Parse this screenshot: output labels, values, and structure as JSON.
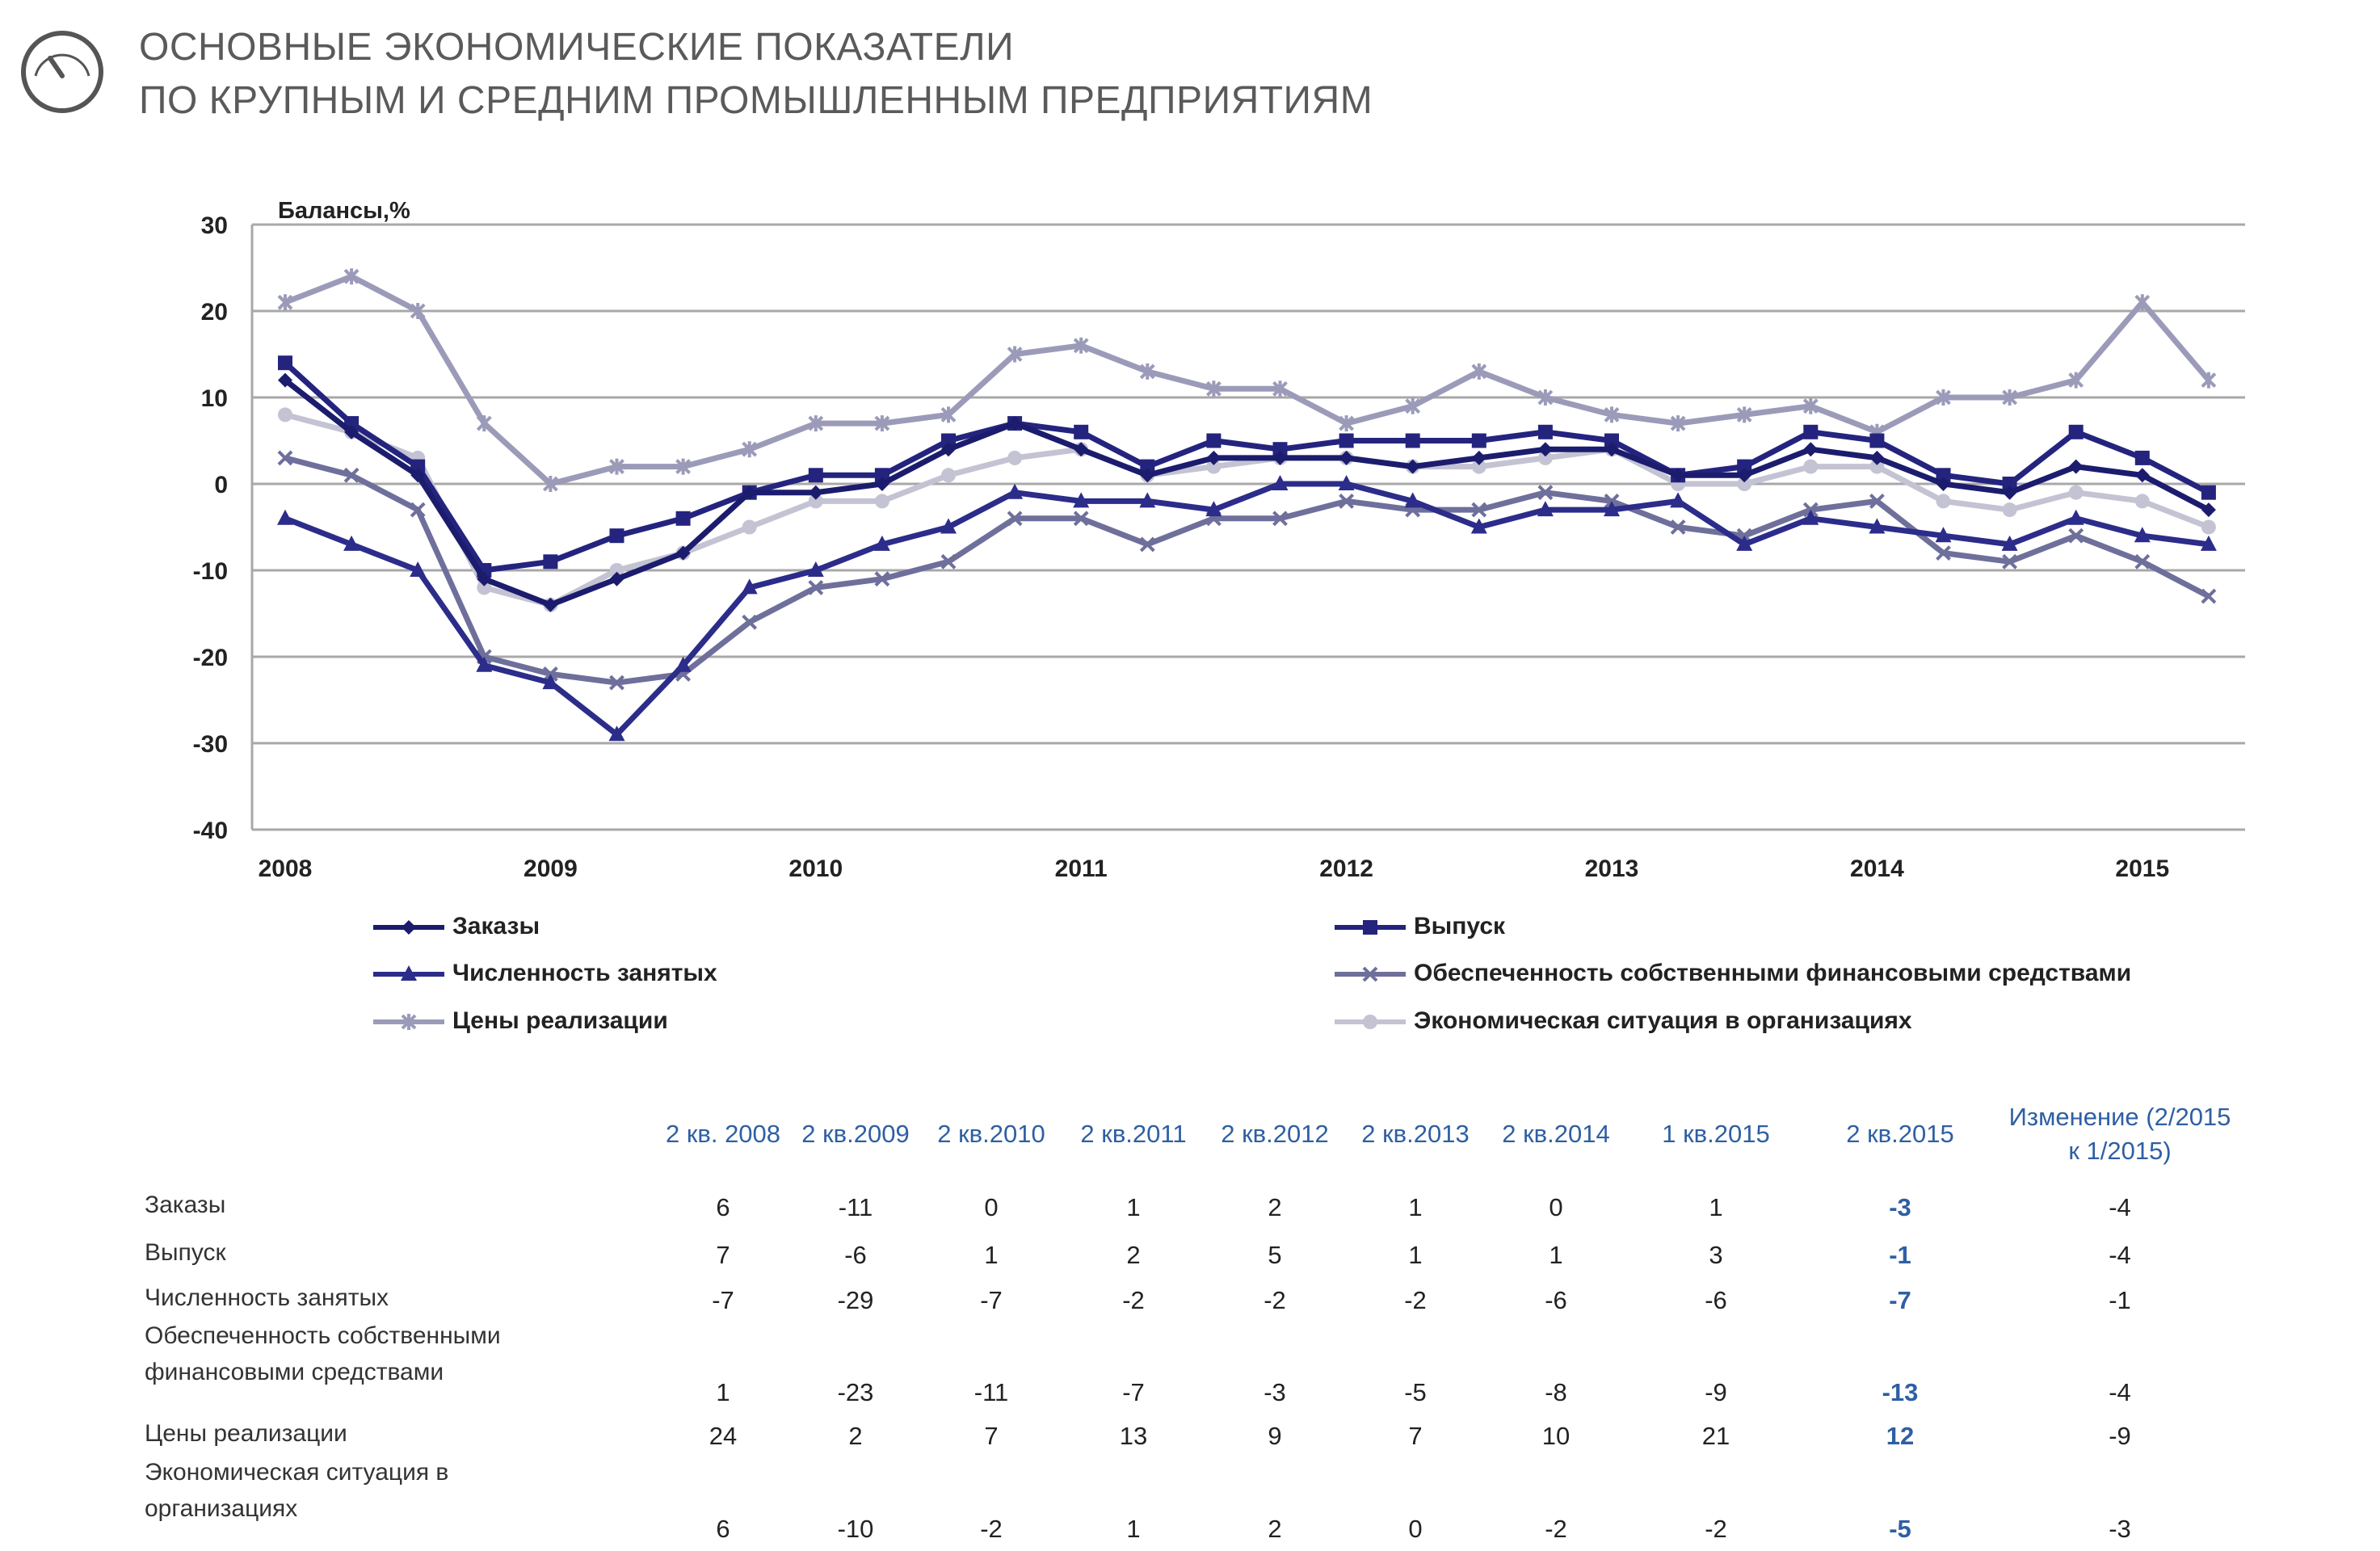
{
  "header": {
    "title_line1": "ОСНОВНЫЕ ЭКОНОМИЧЕСКИЕ ПОКАЗАТЕЛИ",
    "title_line2": "ПО КРУПНЫМ И СРЕДНИМ ПРОМЫШЛЕННЫМ ПРЕДПРИЯТИЯМ",
    "icon": "speedometer-icon"
  },
  "chart_data": {
    "type": "line",
    "ylabel": "Балансы,%",
    "ylim": [
      -40,
      30
    ],
    "yticks": [
      30,
      20,
      10,
      0,
      -10,
      -20,
      -30,
      -40
    ],
    "xtick_labels": [
      "2008",
      "2009",
      "2010",
      "2011",
      "2012",
      "2013",
      "2014",
      "2015"
    ],
    "grid": true,
    "legend_position": "bottom",
    "series": [
      {
        "name": "Заказы",
        "marker": "diamond",
        "color": "#1c1c6e",
        "values": [
          12,
          6,
          1,
          -11,
          -14,
          -11,
          -8,
          -1,
          -1,
          0,
          4,
          7,
          4,
          1,
          3,
          3,
          3,
          2,
          3,
          4,
          4,
          1,
          1,
          4,
          3,
          0,
          -1,
          2,
          1,
          -3
        ]
      },
      {
        "name": "Выпуск",
        "marker": "square",
        "color": "#24247f",
        "values": [
          14,
          7,
          2,
          -10,
          -9,
          -6,
          -4,
          -1,
          1,
          1,
          5,
          7,
          6,
          2,
          5,
          4,
          5,
          5,
          5,
          6,
          5,
          1,
          2,
          6,
          5,
          1,
          0,
          6,
          3,
          -1
        ]
      },
      {
        "name": "Численность занятых",
        "marker": "triangle",
        "color": "#2c2c8a",
        "values": [
          -4,
          -7,
          -10,
          -21,
          -23,
          -29,
          -21,
          -12,
          -10,
          -7,
          -5,
          -1,
          -2,
          -2,
          -3,
          0,
          0,
          -2,
          -5,
          -3,
          -3,
          -2,
          -7,
          -4,
          -5,
          -6,
          -7,
          -4,
          -6,
          -7
        ]
      },
      {
        "name": "Обеспеченность собственными финансовыми средствами",
        "marker": "x",
        "color": "#6f6f9c",
        "values": [
          3,
          1,
          -3,
          -20,
          -22,
          -23,
          -22,
          -16,
          -12,
          -11,
          -9,
          -4,
          -4,
          -7,
          -4,
          -4,
          -2,
          -3,
          -3,
          -1,
          -2,
          -5,
          -6,
          -3,
          -2,
          -8,
          -9,
          -6,
          -9,
          -13
        ]
      },
      {
        "name": "Цены реализации",
        "marker": "star",
        "color": "#9b9bb9",
        "values": [
          21,
          24,
          20,
          7,
          0,
          2,
          2,
          4,
          7,
          7,
          8,
          15,
          16,
          13,
          11,
          11,
          7,
          9,
          13,
          10,
          8,
          7,
          8,
          9,
          6,
          10,
          10,
          12,
          21,
          12
        ]
      },
      {
        "name": "Экономическая ситуация в организациях",
        "marker": "circle",
        "color": "#c3c3d3",
        "values": [
          8,
          6,
          3,
          -12,
          -14,
          -10,
          -8,
          -5,
          -2,
          -2,
          1,
          3,
          4,
          1,
          2,
          3,
          3,
          2,
          2,
          3,
          4,
          0,
          0,
          2,
          2,
          -2,
          -3,
          -1,
          -2,
          -5
        ]
      }
    ]
  },
  "table": {
    "columns": [
      "2 кв. 2008",
      "2 кв.2009",
      "2 кв.2010",
      "2 кв.2011",
      "2 кв.2012",
      "2 кв.2013",
      "2 кв.2014",
      "1 кв.2015",
      "2 кв.2015"
    ],
    "change_header_line1": "Изменение (2/2015",
    "change_header_line2": "к 1/2015)",
    "rows": [
      {
        "label": [
          "Заказы"
        ],
        "values": [
          "6",
          "-11",
          "0",
          "1",
          "2",
          "1",
          "0",
          "1",
          "-3",
          "-4"
        ]
      },
      {
        "label": [
          "Выпуск"
        ],
        "values": [
          "7",
          "-6",
          "1",
          "2",
          "5",
          "1",
          "1",
          "3",
          "-1",
          "-4"
        ]
      },
      {
        "label": [
          "Численность занятых"
        ],
        "values": [
          "-7",
          "-29",
          "-7",
          "-2",
          "-2",
          "-2",
          "-6",
          "-6",
          "-7",
          "-1"
        ]
      },
      {
        "label": [
          "Обеспеченность собственными",
          "финансовыми средствами"
        ],
        "values": [
          "1",
          "-23",
          "-11",
          "-7",
          "-3",
          "-5",
          "-8",
          "-9",
          "-13",
          "-4"
        ]
      },
      {
        "label": [
          "Цены реализации"
        ],
        "values": [
          "24",
          "2",
          "7",
          "13",
          "9",
          "7",
          "10",
          "21",
          "12",
          "-9"
        ]
      },
      {
        "label": [
          "Экономическая ситуация в",
          "организациях"
        ],
        "values": [
          "6",
          "-10",
          "-2",
          "1",
          "2",
          "0",
          "-2",
          "-2",
          "-5",
          "-3"
        ]
      }
    ]
  }
}
